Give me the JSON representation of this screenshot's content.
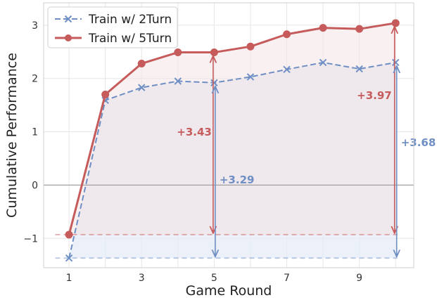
{
  "chart_data": {
    "type": "line",
    "title": "",
    "xlabel": "Game Round",
    "ylabel": "Cumulative Performance",
    "x": [
      1,
      2,
      3,
      4,
      5,
      6,
      7,
      8,
      9,
      10
    ],
    "xticks": [
      1,
      3,
      5,
      7,
      9
    ],
    "yticks": [
      -1,
      0,
      1,
      2,
      3
    ],
    "ytick_labels": [
      "−1",
      "0",
      "1",
      "2",
      "3"
    ],
    "xlim": [
      0.3,
      10.5
    ],
    "ylim": [
      -1.55,
      3.42
    ],
    "grid": true,
    "legend_position": "top-left",
    "zero_line": true,
    "series": [
      {
        "name": "Train w/ 2Turn",
        "values": [
          -1.37,
          1.59,
          1.83,
          1.95,
          1.92,
          2.03,
          2.17,
          2.3,
          2.18,
          2.3
        ],
        "color": "#6f8fc4",
        "style": "dashed",
        "marker": "x",
        "fill": "#e6ecf7"
      },
      {
        "name": "Train w/ 5Turn",
        "values": [
          -0.93,
          1.7,
          2.28,
          2.49,
          2.49,
          2.6,
          2.83,
          2.95,
          2.93,
          3.04
        ],
        "color": "#c65b5b",
        "style": "solid",
        "marker": "o",
        "fill": "#f3e4e6"
      }
    ],
    "annotations": [
      {
        "text": "+3.43",
        "x": 5,
        "series": "Train w/ 5Turn",
        "color": "#c65b5b"
      },
      {
        "text": "+3.29",
        "x": 5,
        "series": "Train w/ 2Turn",
        "color": "#6f8fc4"
      },
      {
        "text": "+3.97",
        "x": 10,
        "series": "Train w/ 5Turn",
        "color": "#c65b5b"
      },
      {
        "text": "+3.68",
        "x": 10,
        "series": "Train w/ 2Turn",
        "color": "#6f8fc4"
      }
    ]
  }
}
